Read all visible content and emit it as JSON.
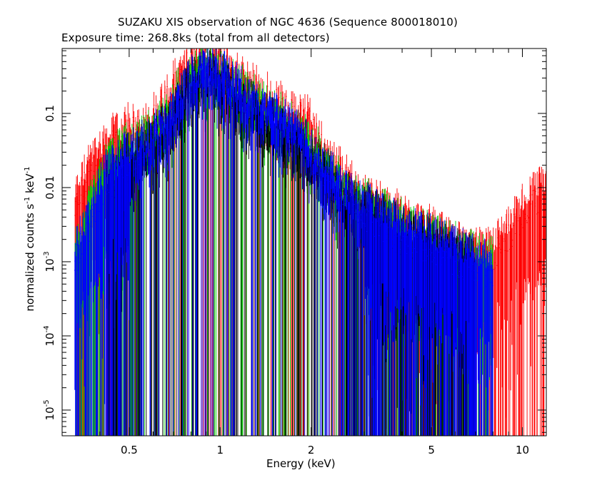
{
  "chart_data": {
    "type": "scatter",
    "title_line1": "SUZAKU XIS observation of NGC 4636 (Sequence 800018010)",
    "title_line2": "Exposure time: 268.8ks (total from all detectors)",
    "xlabel": "Energy (keV)",
    "ylabel": {
      "prefix": "normalized counts s",
      "exp1": "-1",
      "mid": " keV",
      "exp2": "-1"
    },
    "x_scale": "log",
    "y_scale": "log",
    "xlim": [
      0.3,
      12
    ],
    "ylim": [
      4.5e-06,
      0.75
    ],
    "x_ticks": [
      {
        "value": 0.5,
        "label": "0.5"
      },
      {
        "value": 1,
        "label": "1"
      },
      {
        "value": 2,
        "label": "2"
      },
      {
        "value": 5,
        "label": "5"
      },
      {
        "value": 10,
        "label": "10"
      }
    ],
    "y_ticks": [
      {
        "value": 0.1,
        "base": "0.1",
        "exp": ""
      },
      {
        "value": 0.01,
        "base": "0.01",
        "exp": ""
      },
      {
        "value": 0.001,
        "base": "10",
        "exp": "-3"
      },
      {
        "value": 0.0001,
        "base": "10",
        "exp": "-4"
      },
      {
        "value": 1e-05,
        "base": "10",
        "exp": "-5"
      }
    ],
    "grid": false,
    "series": [
      {
        "color": "#ff0000",
        "x": [
          0.33,
          0.37,
          0.42,
          0.5,
          0.6,
          0.7,
          0.8,
          0.9,
          1.0,
          1.2,
          1.4,
          1.6,
          1.8,
          1.9,
          2.2,
          2.6,
          3.0,
          3.5,
          4.0,
          5.0,
          6.0,
          7.0,
          8.0,
          9.0,
          10.0,
          11.0,
          12.0
        ],
        "y": [
          0.005,
          0.015,
          0.03,
          0.05,
          0.08,
          0.2,
          0.5,
          0.55,
          0.45,
          0.25,
          0.15,
          0.12,
          0.08,
          0.1,
          0.03,
          0.012,
          0.006,
          0.004,
          0.003,
          0.002,
          0.0013,
          0.001,
          0.0012,
          0.002,
          0.004,
          0.006,
          0.008
        ]
      },
      {
        "color": "#00cc00",
        "x": [
          0.33,
          0.37,
          0.42,
          0.5,
          0.6,
          0.7,
          0.8,
          0.9,
          1.0,
          1.2,
          1.4,
          1.6,
          1.8,
          2.0,
          2.5,
          3.0,
          3.5,
          4.0,
          5.0,
          6.0,
          7.0,
          8.0
        ],
        "y": [
          0.001,
          0.004,
          0.015,
          0.03,
          0.05,
          0.12,
          0.35,
          0.42,
          0.33,
          0.18,
          0.11,
          0.08,
          0.06,
          0.035,
          0.01,
          0.005,
          0.0035,
          0.0025,
          0.0017,
          0.0012,
          0.0009,
          0.0008
        ]
      },
      {
        "color": "#0000ff",
        "x": [
          0.33,
          0.37,
          0.42,
          0.5,
          0.6,
          0.7,
          0.8,
          0.9,
          1.0,
          1.2,
          1.4,
          1.6,
          1.8,
          2.0,
          2.5,
          3.0,
          3.5,
          4.0,
          5.0,
          6.0,
          7.0,
          8.0
        ],
        "y": [
          0.001,
          0.003,
          0.012,
          0.025,
          0.045,
          0.1,
          0.3,
          0.38,
          0.32,
          0.17,
          0.1,
          0.075,
          0.055,
          0.03,
          0.009,
          0.0045,
          0.003,
          0.0022,
          0.0015,
          0.0011,
          0.0008,
          0.0007
        ]
      },
      {
        "color": "#000000",
        "x": [
          0.42,
          0.5,
          0.6,
          0.7,
          0.8,
          0.9,
          1.0,
          1.2,
          1.4,
          1.6,
          1.8,
          2.0,
          2.5,
          3.0,
          3.5,
          4.0,
          5.0,
          6.0,
          7.0
        ],
        "y": [
          0.008,
          0.02,
          0.04,
          0.08,
          0.25,
          0.32,
          0.26,
          0.14,
          0.085,
          0.065,
          0.045,
          0.026,
          0.008,
          0.004,
          0.0028,
          0.002,
          0.0014,
          0.001,
          0.0008
        ]
      }
    ]
  }
}
